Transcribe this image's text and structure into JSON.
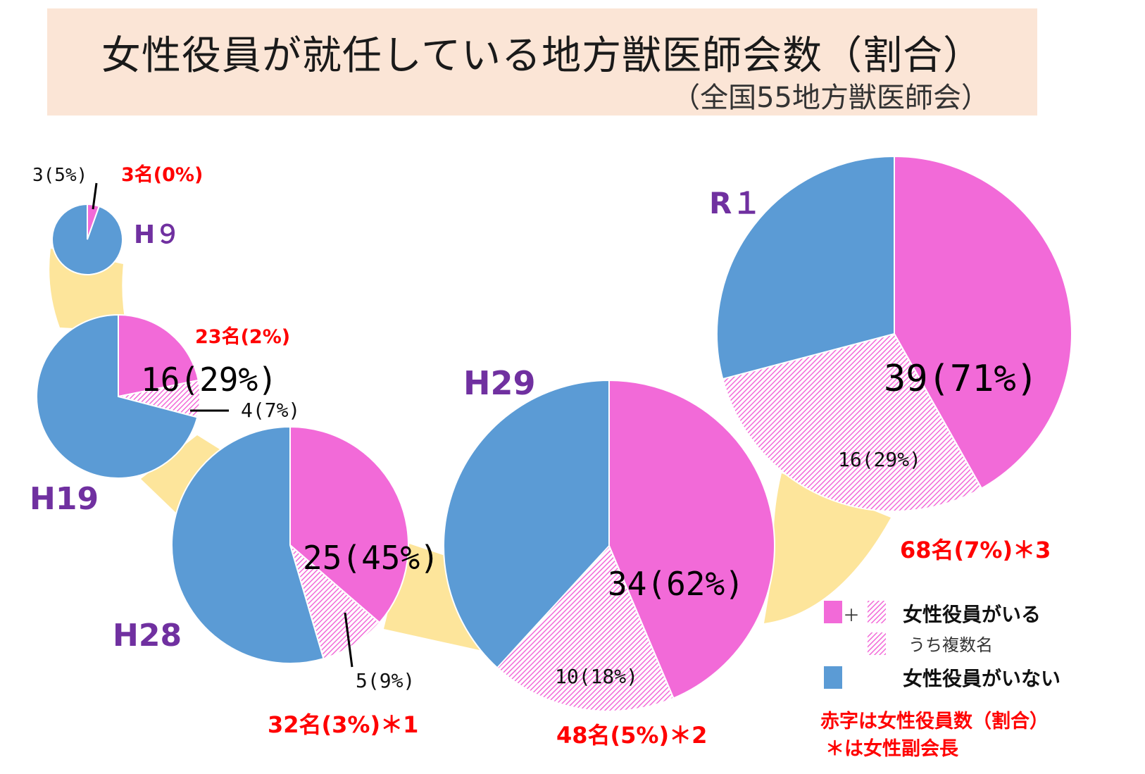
{
  "title": "女性役員が就任している地方獣医師会数（割合）",
  "subtitle": "（全国55地方獣医師会）",
  "colors": {
    "with_female": "#f26ad8",
    "multiple": "#f6b8ee",
    "without": "#5b9bd5",
    "connector": "#fde59b",
    "year": "#7030a0",
    "red": "#ff0000"
  },
  "chart_data": {
    "type": "pie",
    "total": 55,
    "pies": [
      {
        "year": "H９",
        "single": 3,
        "multiple": 0,
        "without": 52,
        "single_label": "3(5%)",
        "officer_label": "3名(0%)"
      },
      {
        "year": "H19",
        "single": 12,
        "multiple": 4,
        "without": 39,
        "main_label": "16(29%)",
        "multiple_label": "4(7%)",
        "officer_label": "23名(2%)"
      },
      {
        "year": "H28",
        "single": 20,
        "multiple": 5,
        "without": 30,
        "main_label": "25(45%)",
        "multiple_label": "5(9%)",
        "officer_label": "32名(3%)＊1"
      },
      {
        "year": "H29",
        "single": 24,
        "multiple": 10,
        "without": 21,
        "main_label": "34(62%)",
        "multiple_label": "10(18%)",
        "officer_label": "48名(5%)＊2"
      },
      {
        "year": "R１",
        "single": 23,
        "multiple": 16,
        "without": 16,
        "main_label": "39(71%)",
        "multiple_label": "16(29%)",
        "officer_label": "68名(7%)＊3"
      }
    ],
    "legend": {
      "plus": "＋",
      "with_female": "女性役員がいる",
      "multiple": "うち複数名",
      "without": "女性役員がいない"
    },
    "notes": [
      "赤字は女性役員数（割合）",
      "＊は女性副会長"
    ]
  }
}
